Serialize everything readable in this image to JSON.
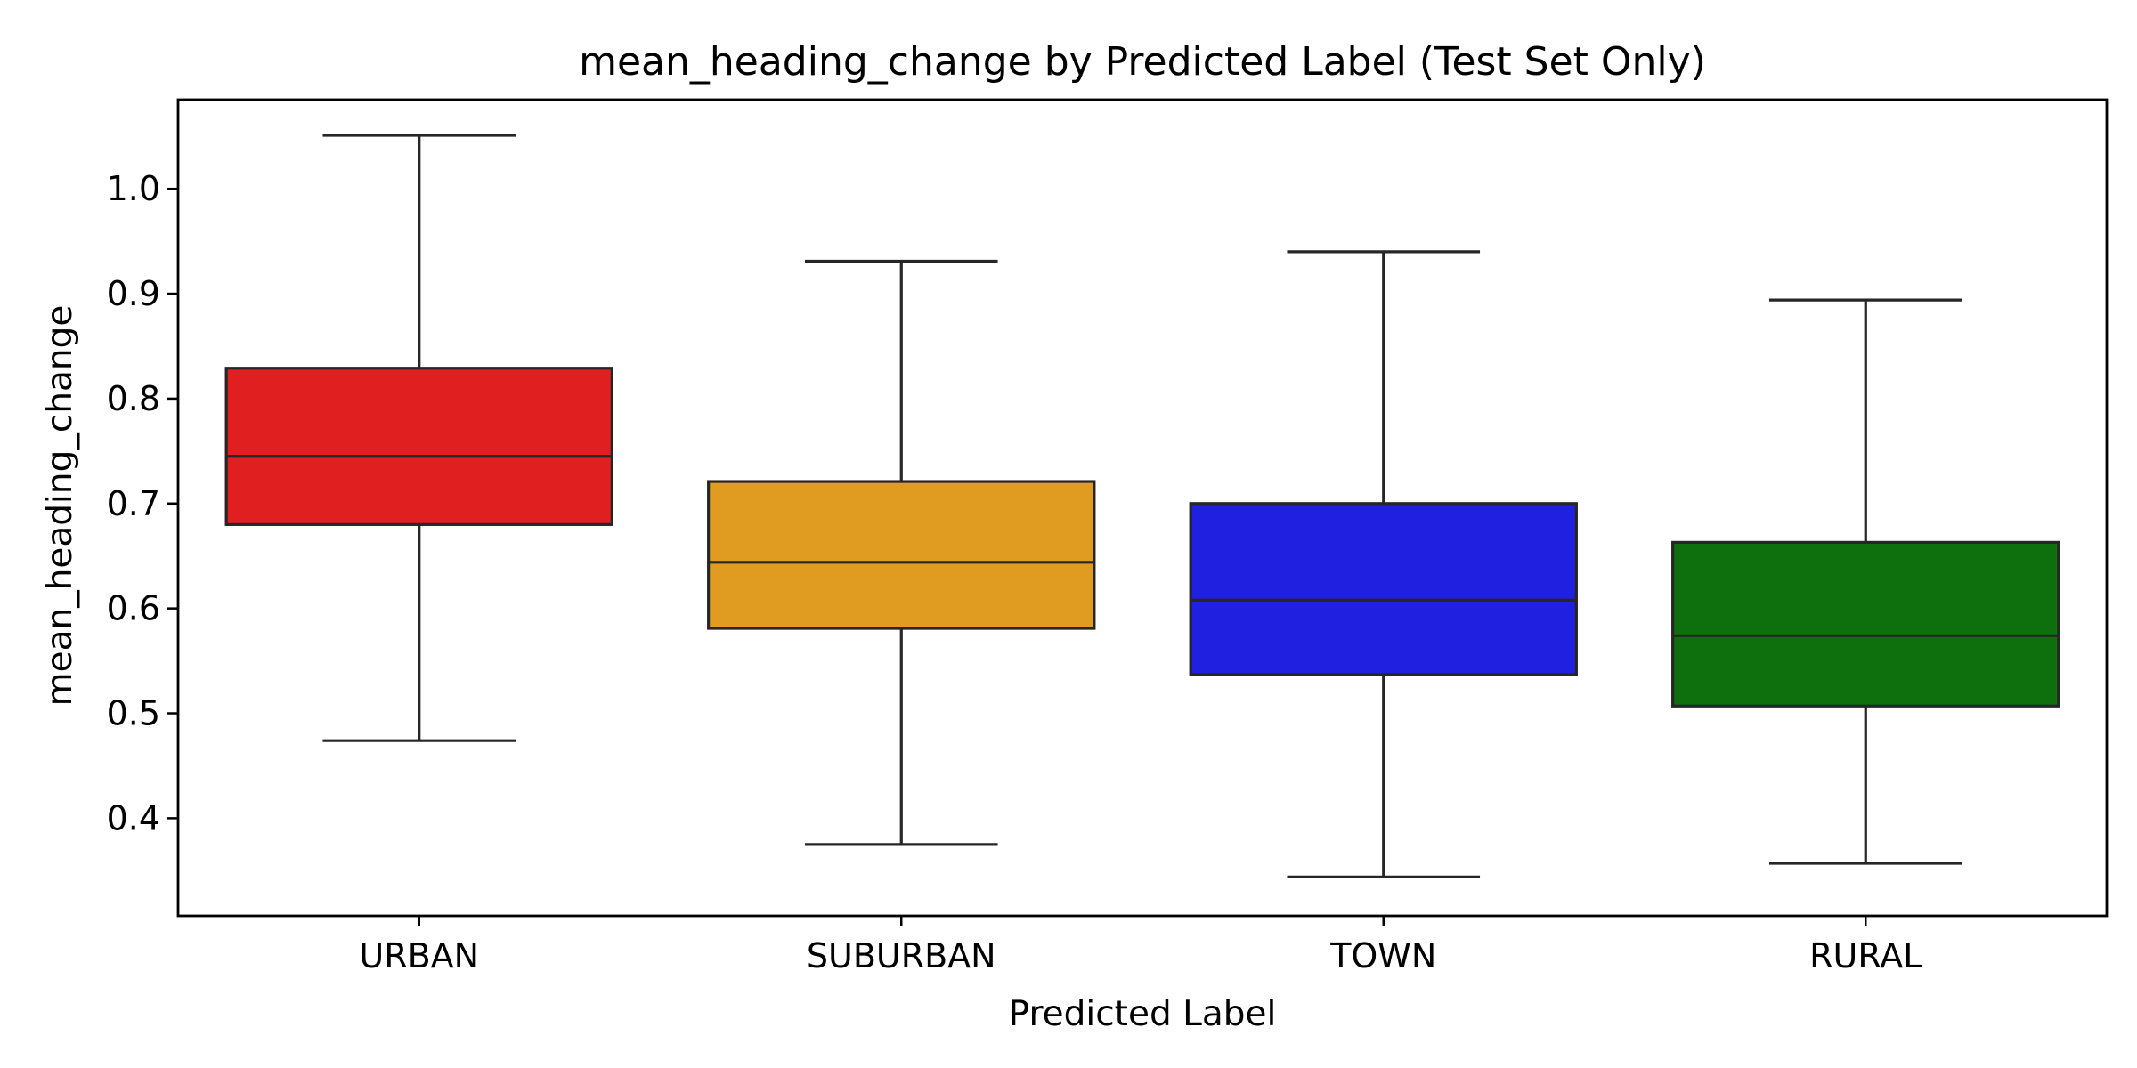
{
  "chart_data": {
    "type": "box",
    "title": "mean_heading_change by Predicted Label (Test Set Only)",
    "xlabel": "Predicted Label",
    "ylabel": "mean_heading_change",
    "ylim": [
      0.307,
      1.085
    ],
    "yticks": [
      0.4,
      0.5,
      0.6,
      0.7,
      0.8,
      0.9,
      1.0
    ],
    "ytick_labels": [
      "0.4",
      "0.5",
      "0.6",
      "0.7",
      "0.8",
      "0.9",
      "1.0"
    ],
    "grid": false,
    "legend": "none",
    "categories": [
      "URBAN",
      "SUBURBAN",
      "TOWN",
      "RURAL"
    ],
    "boxes": [
      {
        "label": "URBAN",
        "color": "#e02020",
        "whisker_low": 0.474,
        "q1": 0.68,
        "median": 0.745,
        "q3": 0.829,
        "whisker_high": 1.051
      },
      {
        "label": "SUBURBAN",
        "color": "#e09c20",
        "whisker_low": 0.375,
        "q1": 0.581,
        "median": 0.644,
        "q3": 0.721,
        "whisker_high": 0.931
      },
      {
        "label": "TOWN",
        "color": "#2020e0",
        "whisker_low": 0.344,
        "q1": 0.537,
        "median": 0.608,
        "q3": 0.7,
        "whisker_high": 0.94
      },
      {
        "label": "RURAL",
        "color": "#0d700d",
        "whisker_low": 0.357,
        "q1": 0.507,
        "median": 0.574,
        "q3": 0.663,
        "whisker_high": 0.894
      }
    ]
  }
}
